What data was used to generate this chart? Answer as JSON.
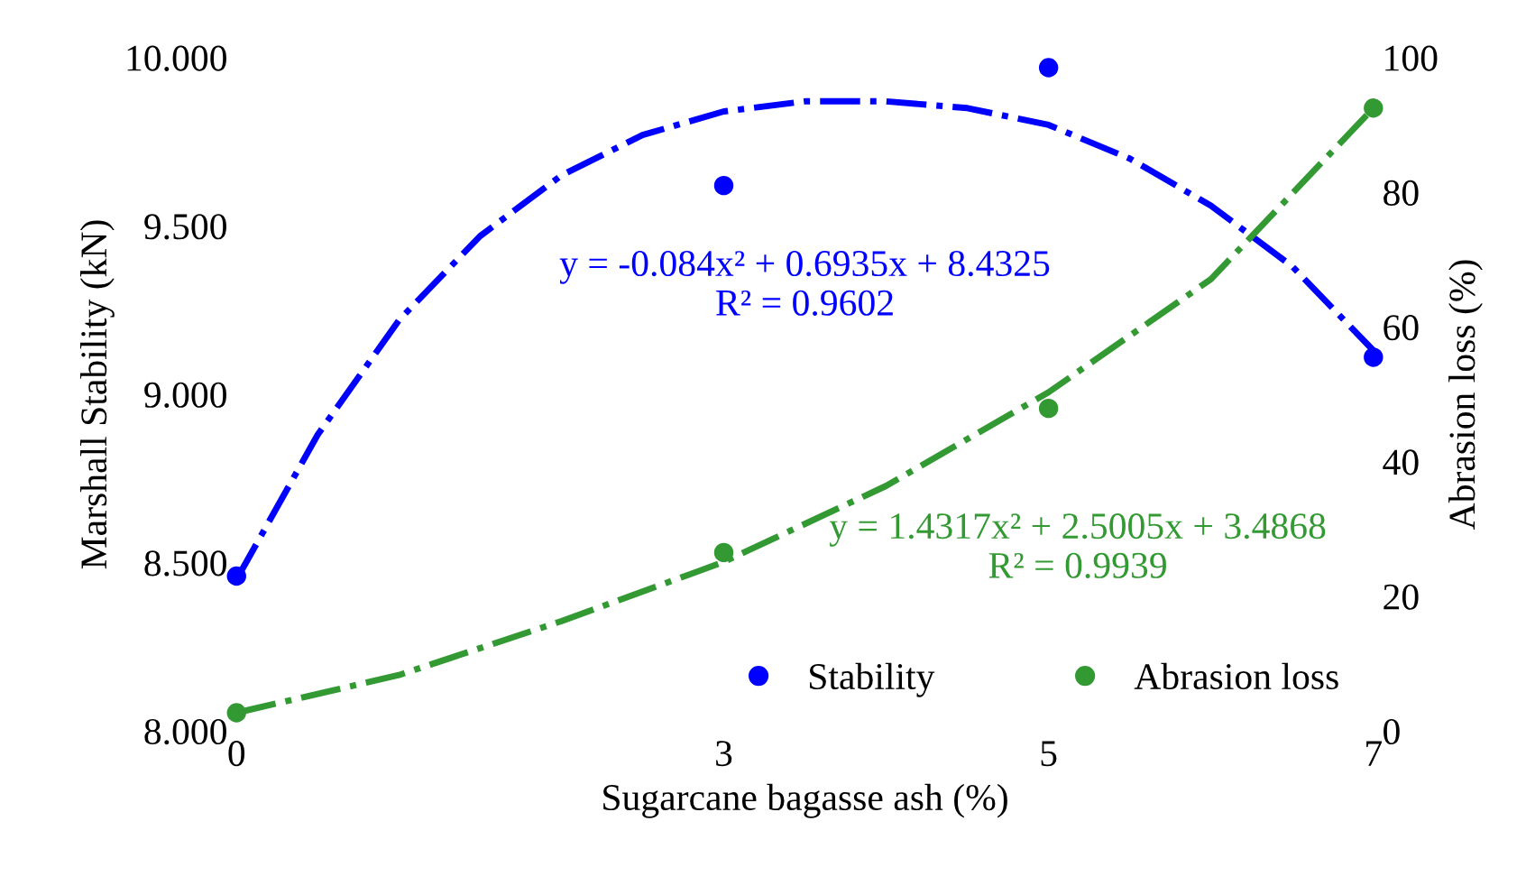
{
  "chart_data": {
    "type": "scatter",
    "xlabel": "Sugarcane bagasse ash (%)",
    "ylabel": "Marshall Stability (kN)",
    "y2label": "Abrasion loss (%)",
    "xlim": [
      0,
      7
    ],
    "xticks": [
      0,
      3,
      5,
      7
    ],
    "ylim": [
      8,
      10
    ],
    "yticks": [
      {
        "value": 8,
        "label": "8.000"
      },
      {
        "value": 8.5,
        "label": "8.500"
      },
      {
        "value": 9,
        "label": "9.000"
      },
      {
        "value": 9.5,
        "label": "9.500"
      },
      {
        "value": 10,
        "label": "10.000"
      }
    ],
    "y2lim": [
      0,
      100
    ],
    "y2ticks": [
      0,
      20,
      40,
      60,
      80,
      100
    ],
    "series": [
      {
        "name": "Stability",
        "color": "#0000ff",
        "x": [
          0,
          3,
          5,
          7
        ],
        "values": [
          8.46,
          9.62,
          9.97,
          9.11
        ],
        "marker": "circle"
      },
      {
        "name": "Abrasion loss",
        "color": "#339933",
        "axis": "y2",
        "x": [
          0,
          3,
          5,
          7
        ],
        "values": [
          2.7,
          26.5,
          47.9,
          92.5
        ],
        "marker": "circle"
      },
      {
        "type": "line",
        "color": "#0000ff",
        "x": [
          0,
          0.5,
          1,
          1.5,
          2,
          2.5,
          3,
          3.5,
          4,
          4.5,
          5,
          5.5,
          6,
          6.5,
          7
        ],
        "values": [
          8.45,
          8.88,
          9.22,
          9.47,
          9.65,
          9.77,
          9.84,
          9.87,
          9.87,
          9.85,
          9.8,
          9.7,
          9.56,
          9.38,
          9.13
        ],
        "line_style": "dashdot",
        "marker": "none"
      },
      {
        "type": "line",
        "color": "#339933",
        "axis": "y2",
        "x": [
          0,
          1,
          2,
          3,
          4,
          5,
          6,
          7
        ],
        "values": [
          2.7,
          8.3,
          16.3,
          25.1,
          36.4,
          50.3,
          67.1,
          92.5
        ],
        "line_style": "dashdot",
        "marker": "none"
      }
    ],
    "annotations": [
      "y = -0.084x² + 0.6935x + 8.4325\nR² = 0.9602",
      "y = 1.4317x² + 2.5005x + 3.4868\nR² = 0.9939"
    ],
    "legend": "bottom right",
    "grid": false
  }
}
